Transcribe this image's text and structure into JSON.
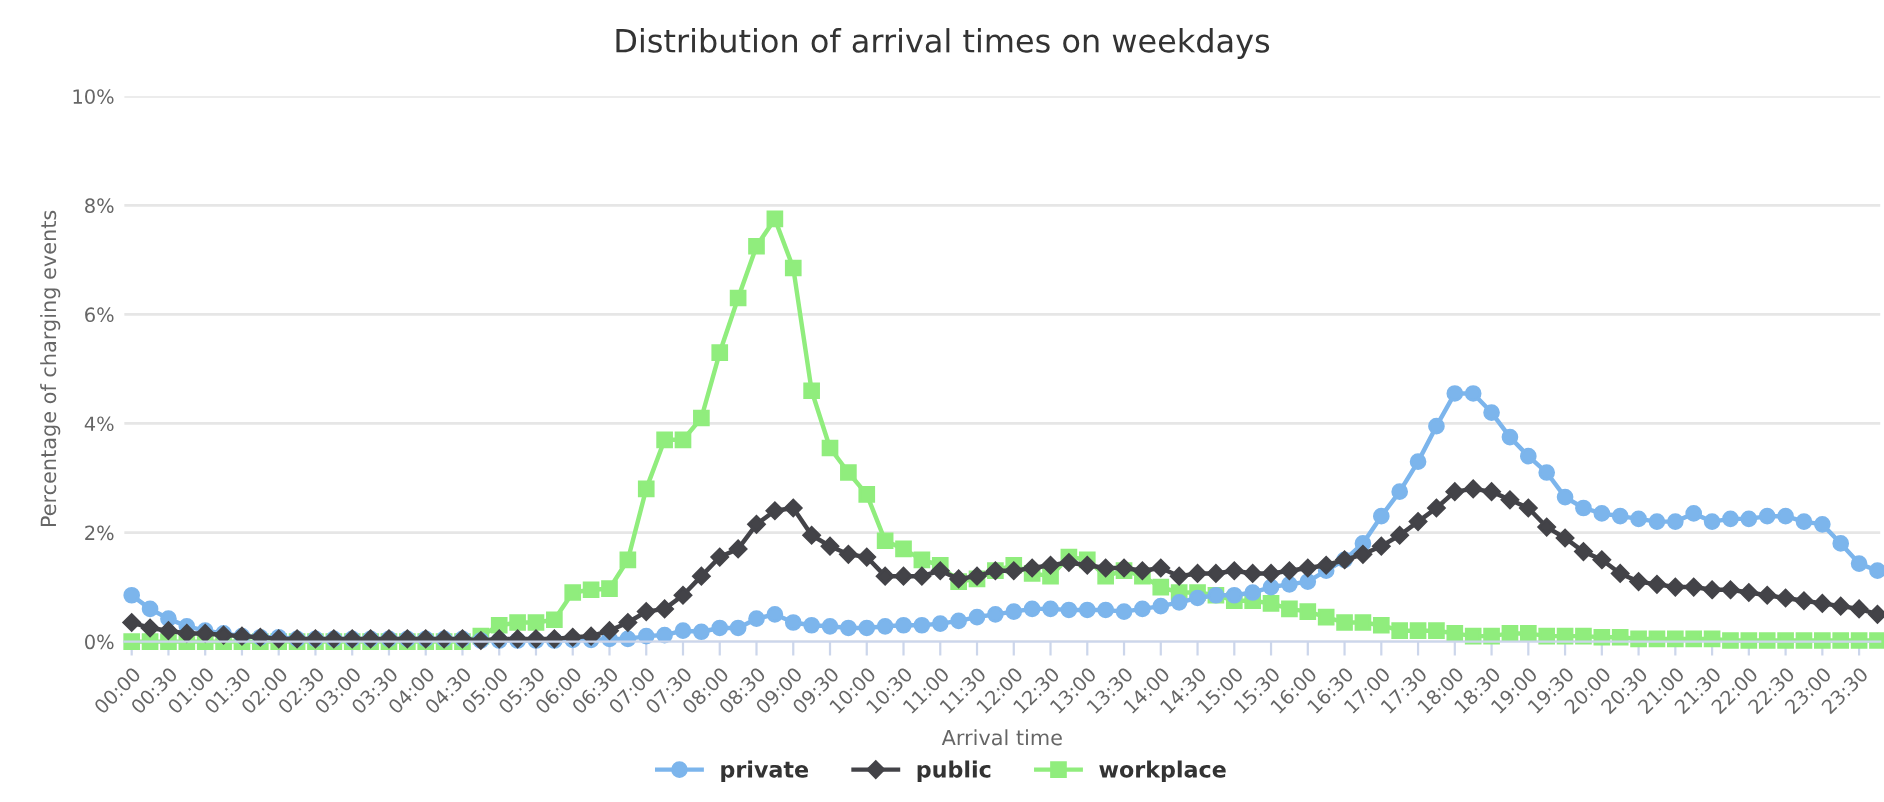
{
  "chart_data": {
    "type": "line",
    "title": "Distribution of arrival times on weekdays",
    "xlabel": "Arrival time",
    "ylabel": "Percentage of charging events",
    "categories": [
      "00:00",
      null,
      "00:30",
      null,
      "01:00",
      null,
      "01:30",
      null,
      "02:00",
      null,
      "02:30",
      null,
      "03:00",
      null,
      "03:30",
      null,
      "04:00",
      null,
      "04:30",
      null,
      "05:00",
      null,
      "05:30",
      null,
      "06:00",
      null,
      "06:30",
      null,
      "07:00",
      null,
      "07:30",
      null,
      "08:00",
      null,
      "08:30",
      null,
      "09:00",
      null,
      "09:30",
      null,
      "10:00",
      null,
      "10:30",
      null,
      "11:00",
      null,
      "11:30",
      null,
      "12:00",
      null,
      "12:30",
      null,
      "13:00",
      null,
      "13:30",
      null,
      "14:00",
      null,
      "14:30",
      null,
      "15:00",
      null,
      "15:30",
      null,
      "16:00",
      null,
      "16:30",
      null,
      "17:00",
      null,
      "17:30",
      null,
      "18:00",
      null,
      "18:30",
      null,
      "19:00",
      null,
      "19:30",
      null,
      "20:00",
      null,
      "20:30",
      null,
      "21:00",
      null,
      "21:30",
      null,
      "22:00",
      null,
      "22:30",
      null,
      "23:00",
      null,
      "23:30",
      null
    ],
    "series": [
      {
        "name": "private",
        "color": "#7cb5ec",
        "marker": "circle",
        "values": [
          0.85,
          0.6,
          0.42,
          0.28,
          0.2,
          0.15,
          0.1,
          0.08,
          0.08,
          0.05,
          0.05,
          0.05,
          0.05,
          0.05,
          0.05,
          0.05,
          0.05,
          0.05,
          0.05,
          0.02,
          0.02,
          0.02,
          0.02,
          0.02,
          0.03,
          0.03,
          0.05,
          0.05,
          0.1,
          0.12,
          0.2,
          0.18,
          0.25,
          0.25,
          0.42,
          0.5,
          0.35,
          0.3,
          0.28,
          0.25,
          0.25,
          0.28,
          0.3,
          0.3,
          0.33,
          0.38,
          0.45,
          0.5,
          0.55,
          0.6,
          0.6,
          0.58,
          0.58,
          0.58,
          0.55,
          0.6,
          0.65,
          0.72,
          0.8,
          0.85,
          0.85,
          0.9,
          1.0,
          1.05,
          1.1,
          1.3,
          1.5,
          1.8,
          2.3,
          2.75,
          3.3,
          3.95,
          4.55,
          4.55,
          4.2,
          3.75,
          3.4,
          3.1,
          2.65,
          2.45,
          2.35,
          2.3,
          2.25,
          2.2,
          2.2,
          2.35,
          2.2,
          2.25,
          2.25,
          2.3,
          2.3,
          2.2,
          2.15,
          1.8,
          1.43,
          1.3
        ]
      },
      {
        "name": "public",
        "color": "#434348",
        "marker": "diamond",
        "values": [
          0.35,
          0.25,
          0.2,
          0.15,
          0.15,
          0.12,
          0.1,
          0.08,
          0.05,
          0.05,
          0.05,
          0.05,
          0.05,
          0.05,
          0.05,
          0.05,
          0.05,
          0.05,
          0.05,
          0.02,
          0.05,
          0.05,
          0.05,
          0.05,
          0.08,
          0.1,
          0.2,
          0.35,
          0.55,
          0.6,
          0.85,
          1.2,
          1.55,
          1.7,
          2.15,
          2.4,
          2.45,
          1.95,
          1.75,
          1.6,
          1.55,
          1.2,
          1.2,
          1.2,
          1.3,
          1.15,
          1.2,
          1.3,
          1.3,
          1.35,
          1.4,
          1.45,
          1.4,
          1.35,
          1.35,
          1.3,
          1.35,
          1.2,
          1.25,
          1.25,
          1.3,
          1.25,
          1.25,
          1.3,
          1.35,
          1.4,
          1.5,
          1.6,
          1.75,
          1.95,
          2.2,
          2.45,
          2.75,
          2.8,
          2.75,
          2.6,
          2.45,
          2.1,
          1.9,
          1.65,
          1.5,
          1.25,
          1.1,
          1.05,
          1.0,
          1.0,
          0.95,
          0.95,
          0.9,
          0.85,
          0.8,
          0.75,
          0.7,
          0.65,
          0.6,
          0.5
        ]
      },
      {
        "name": "workplace",
        "color": "#90ed7d",
        "marker": "square",
        "values": [
          0,
          0,
          0,
          0,
          0,
          0,
          0,
          0,
          0,
          0,
          0,
          0,
          0,
          0,
          0,
          0,
          0,
          0,
          0,
          0.1,
          0.3,
          0.35,
          0.35,
          0.4,
          0.9,
          0.95,
          0.97,
          1.5,
          2.8,
          3.7,
          3.7,
          4.1,
          5.3,
          6.3,
          7.25,
          7.75,
          6.85,
          4.6,
          3.55,
          3.1,
          2.7,
          1.85,
          1.7,
          1.5,
          1.4,
          1.1,
          1.15,
          1.3,
          1.4,
          1.25,
          1.2,
          1.55,
          1.5,
          1.2,
          1.3,
          1.2,
          1.0,
          0.9,
          0.9,
          0.85,
          0.75,
          0.75,
          0.7,
          0.6,
          0.55,
          0.45,
          0.35,
          0.35,
          0.3,
          0.2,
          0.2,
          0.2,
          0.15,
          0.1,
          0.1,
          0.15,
          0.15,
          0.1,
          0.1,
          0.1,
          0.08,
          0.08,
          0.05,
          0.05,
          0.05,
          0.05,
          0.05,
          0.02,
          0.02,
          0.02,
          0.02,
          0.02,
          0.02,
          0.02,
          0.02,
          0.02
        ]
      }
    ],
    "ylim": [
      0,
      10
    ],
    "yticks": [
      {
        "value": 0,
        "label": "0%"
      },
      {
        "value": 2,
        "label": "2%"
      },
      {
        "value": 4,
        "label": "4%"
      },
      {
        "value": 6,
        "label": "6%"
      },
      {
        "value": 8,
        "label": "8%"
      },
      {
        "value": 10,
        "label": "10%"
      }
    ],
    "grid": "y",
    "legend": "bottom"
  }
}
